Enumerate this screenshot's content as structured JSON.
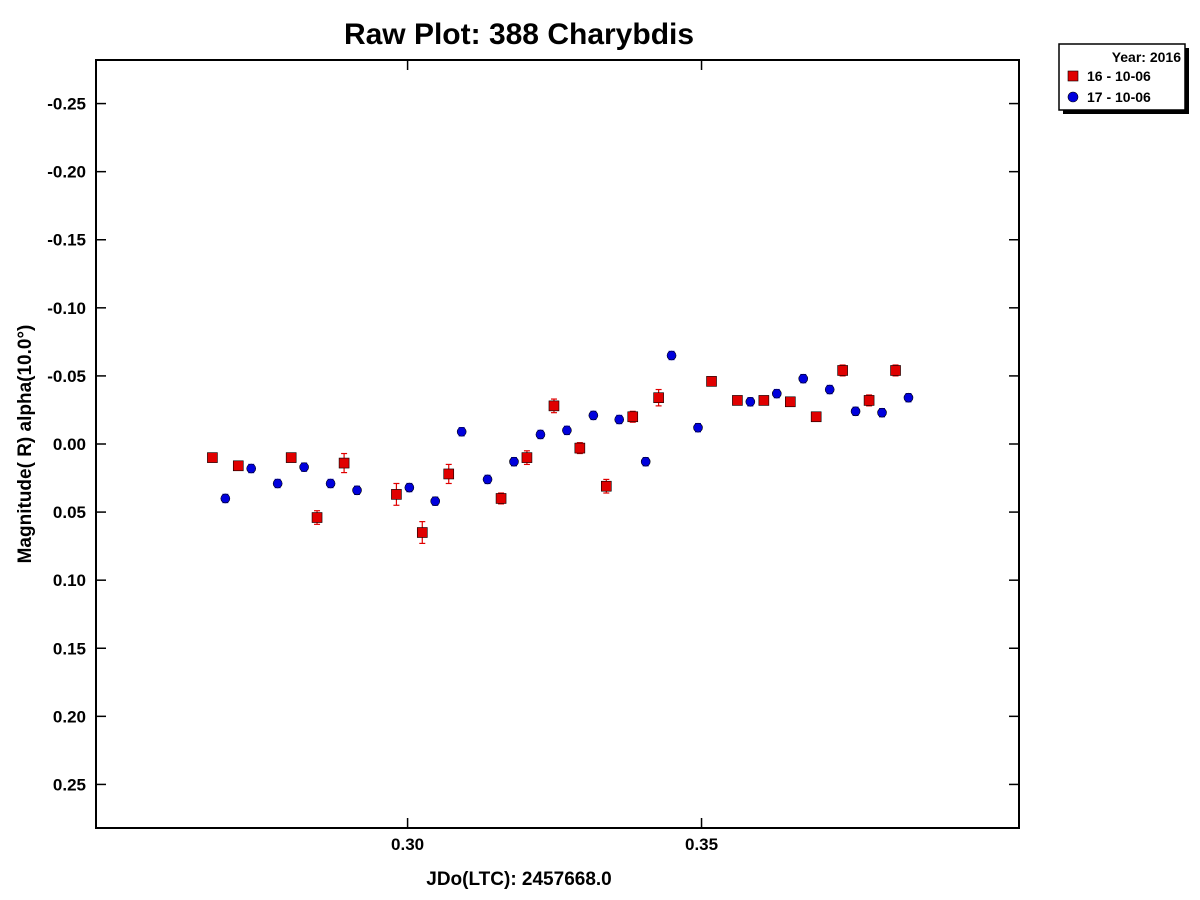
{
  "chart_data": {
    "type": "scatter",
    "title": "Raw Plot: 388 Charybdis",
    "xlabel": "JDo(LTC): 2457668.0",
    "ylabel": "Magnitude( R) alpha(10.0°)",
    "xlim": [
      0.247,
      0.404
    ],
    "ylim": [
      0.282,
      -0.282
    ],
    "y_inverted": true,
    "grid": false,
    "x_ticks": [
      0.3,
      0.35
    ],
    "x_tick_labels": [
      "0.30",
      "0.35"
    ],
    "y_ticks": [
      -0.25,
      -0.2,
      -0.15,
      -0.1,
      -0.05,
      0.0,
      0.05,
      0.1,
      0.15,
      0.2,
      0.25
    ],
    "y_tick_labels": [
      "-0.25",
      "-0.20",
      "-0.15",
      "-0.10",
      "-0.05",
      "0.00",
      "0.05",
      "0.10",
      "0.15",
      "0.20",
      "0.25"
    ],
    "legend": {
      "placement": "outside-top-right",
      "title": "Year: 2016",
      "entries": [
        "16 - 10-06",
        "17 - 10-06"
      ]
    },
    "series": [
      {
        "name": "16 - 10-06",
        "marker": "square",
        "color": "#e00000",
        "x": [
          0.2668,
          0.2712,
          0.2802,
          0.2846,
          0.2892,
          0.2981,
          0.3025,
          0.307,
          0.3159,
          0.3203,
          0.3249,
          0.3293,
          0.3338,
          0.3383,
          0.3427,
          0.3517,
          0.3561,
          0.3606,
          0.3651,
          0.3695,
          0.374,
          0.3785,
          0.383
        ],
        "y": [
          0.01,
          0.016,
          0.01,
          0.054,
          0.014,
          0.037,
          0.065,
          0.022,
          0.04,
          0.01,
          -0.028,
          0.003,
          0.031,
          -0.02,
          -0.034,
          -0.046,
          -0.032,
          -0.032,
          -0.031,
          -0.02,
          -0.054,
          -0.032,
          -0.054
        ],
        "err": [
          0.003,
          0.003,
          0.003,
          0.005,
          0.007,
          0.008,
          0.008,
          0.007,
          0.004,
          0.005,
          0.005,
          0.004,
          0.005,
          0.004,
          0.006,
          0.003,
          0.003,
          0.003,
          0.003,
          0.003,
          0.004,
          0.004,
          0.004
        ]
      },
      {
        "name": "17 - 10-06",
        "marker": "circle",
        "color": "#0000dd",
        "x": [
          0.269,
          0.2734,
          0.2779,
          0.2824,
          0.2869,
          0.2914,
          0.3003,
          0.3047,
          0.3092,
          0.3136,
          0.3181,
          0.3226,
          0.3271,
          0.3316,
          0.336,
          0.3405,
          0.3449,
          0.3494,
          0.3583,
          0.3628,
          0.3673,
          0.3718,
          0.3762,
          0.3807,
          0.3852
        ],
        "y": [
          0.04,
          0.018,
          0.029,
          0.017,
          0.029,
          0.034,
          0.032,
          0.042,
          -0.009,
          0.026,
          0.013,
          -0.007,
          -0.01,
          -0.021,
          -0.018,
          0.013,
          -0.065,
          -0.012,
          -0.031,
          -0.037,
          -0.048,
          -0.04,
          -0.024,
          -0.023,
          -0.034
        ]
      }
    ]
  }
}
